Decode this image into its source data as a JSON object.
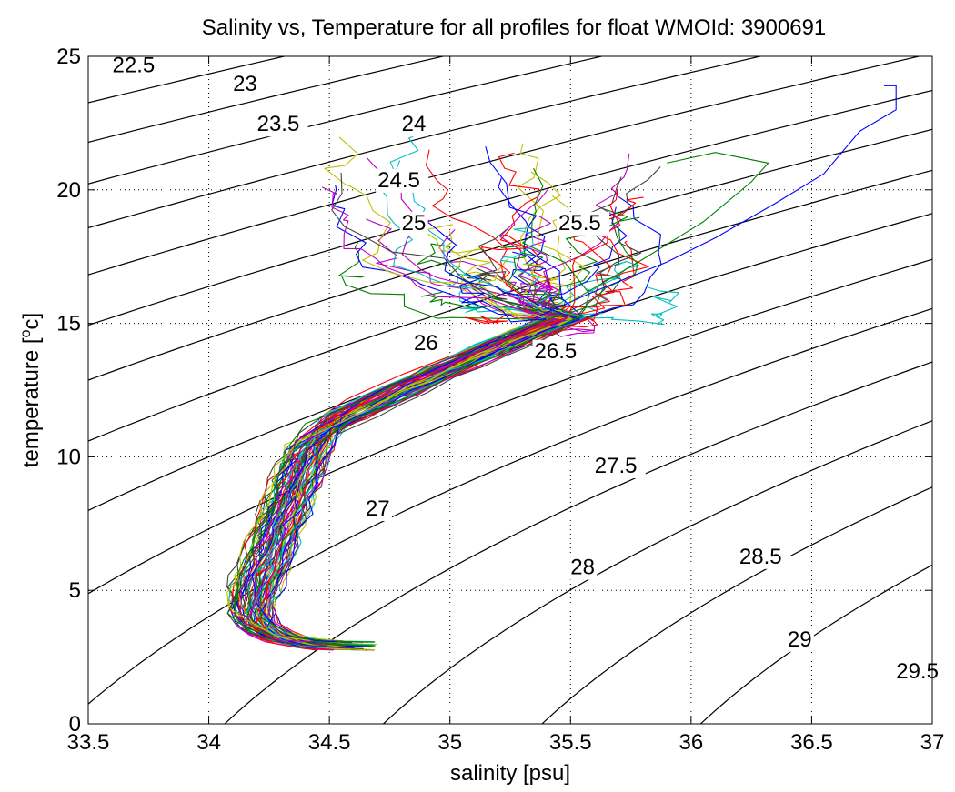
{
  "chart_data": {
    "type": "line",
    "title": "Salinity vs, Temperature for all profiles for float WMOId: 3900691",
    "xlabel": "salinity [psu]",
    "ylabel_prefix": "temperature [",
    "ylabel_sup": "o",
    "ylabel_suffix": "c]",
    "xlim": [
      33.5,
      37
    ],
    "ylim": [
      0,
      25
    ],
    "grid": true,
    "xticks": [
      33.5,
      34,
      34.5,
      35,
      35.5,
      36,
      36.5,
      37
    ],
    "xtick_labels": [
      "33.5",
      "34",
      "34.5",
      "35",
      "35.5",
      "36",
      "36.5",
      "37"
    ],
    "yticks": [
      0,
      5,
      10,
      15,
      20,
      25
    ],
    "ytick_labels": [
      "0",
      "5",
      "10",
      "15",
      "20",
      "25"
    ],
    "density_contours": {
      "levels": [
        22.5,
        23,
        23.5,
        24,
        24.5,
        25,
        25.5,
        26,
        26.5,
        27,
        27.5,
        28,
        28.5,
        29,
        29.5
      ],
      "labels": [
        "22.5",
        "23",
        "23.5",
        "24",
        "24.5",
        "25",
        "25.5",
        "26",
        "26.5",
        "27",
        "27.5",
        "28",
        "28.5",
        "29",
        "29.5"
      ],
      "label_positions": [
        {
          "s": 33.6,
          "t": 24.4
        },
        {
          "s": 34.1,
          "t": 23.7
        },
        {
          "s": 34.2,
          "t": 22.2
        },
        {
          "s": 34.8,
          "t": 22.2
        },
        {
          "s": 34.7,
          "t": 20.1
        },
        {
          "s": 34.8,
          "t": 18.5
        },
        {
          "s": 35.45,
          "t": 18.5
        },
        {
          "s": 34.85,
          "t": 14.0
        },
        {
          "s": 35.35,
          "t": 13.7
        },
        {
          "s": 34.65,
          "t": 7.8
        },
        {
          "s": 35.6,
          "t": 9.4
        },
        {
          "s": 35.5,
          "t": 5.6
        },
        {
          "s": 36.2,
          "t": 6.0
        },
        {
          "s": 36.4,
          "t": 2.9
        },
        {
          "s": 36.85,
          "t": 1.7
        }
      ],
      "color": "#000000"
    },
    "series_colors": [
      "#0000ff",
      "#008000",
      "#ff0000",
      "#00bfbf",
      "#bf00bf",
      "#bfbf00",
      "#404040"
    ],
    "profile_count": 72
  }
}
